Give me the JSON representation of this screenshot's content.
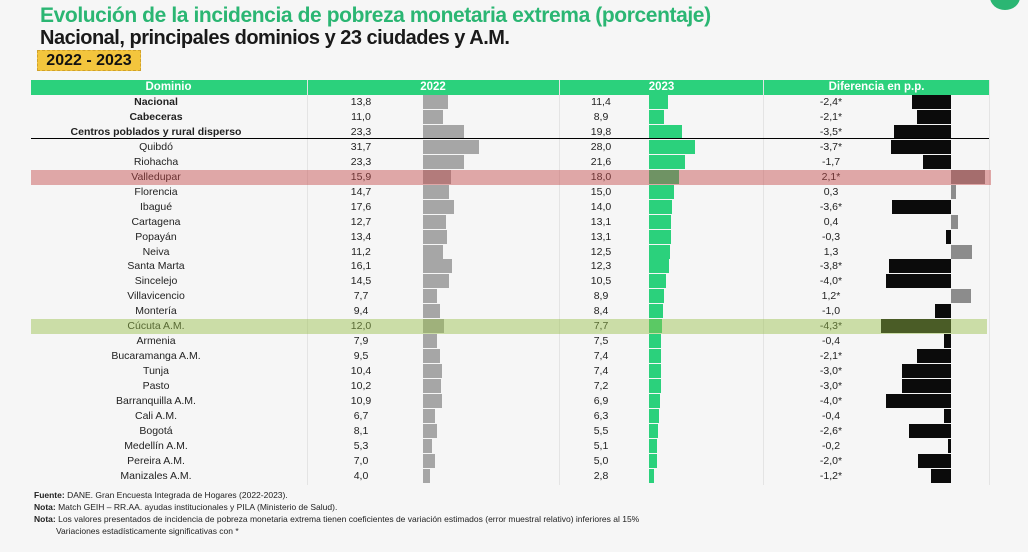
{
  "title": "Evolución de la incidencia de pobreza monetaria extrema (porcentaje)",
  "subtitle": "Nacional, principales dominios y 23 ciudades y A.M.",
  "period": "2022 - 2023",
  "colors": {
    "accent": "#2bd17c",
    "title": "#2bb673",
    "bar_2022": "#a6a6a6",
    "bar_diff_negative": "#0b0b0b",
    "bar_diff_positive": "#8c8c8c",
    "highlight_red": "#c44646",
    "highlight_green": "#96be46"
  },
  "chart_data": {
    "type": "table",
    "columns": [
      "Dominio",
      "2022",
      "2023",
      "Diferencia en p.p."
    ],
    "rows": [
      {
        "name": "Nacional",
        "v2022": "13,8",
        "v2023": "11,4",
        "diff": "-2,4*",
        "bold": true
      },
      {
        "name": "Cabeceras",
        "v2022": "11,0",
        "v2023": "8,9",
        "diff": "-2,1*",
        "bold": true
      },
      {
        "name": "Centros poblados y rural disperso",
        "v2022": "23,3",
        "v2023": "19,8",
        "diff": "-3,5*",
        "bold": true
      },
      {
        "name": "Quibdó",
        "v2022": "31,7",
        "v2023": "28,0",
        "diff": "-3,7*"
      },
      {
        "name": "Riohacha",
        "v2022": "23,3",
        "v2023": "21,6",
        "diff": "-1,7"
      },
      {
        "name": "Valledupar",
        "v2022": "15,9",
        "v2023": "18,0",
        "diff": "2,1*",
        "highlight": "red"
      },
      {
        "name": "Florencia",
        "v2022": "14,7",
        "v2023": "15,0",
        "diff": "0,3"
      },
      {
        "name": "Ibagué",
        "v2022": "17,6",
        "v2023": "14,0",
        "diff": "-3,6*"
      },
      {
        "name": "Cartagena",
        "v2022": "12,7",
        "v2023": "13,1",
        "diff": "0,4"
      },
      {
        "name": "Popayán",
        "v2022": "13,4",
        "v2023": "13,1",
        "diff": "-0,3"
      },
      {
        "name": "Neiva",
        "v2022": "11,2",
        "v2023": "12,5",
        "diff": "1,3"
      },
      {
        "name": "Santa Marta",
        "v2022": "16,1",
        "v2023": "12,3",
        "diff": "-3,8*"
      },
      {
        "name": "Sincelejo",
        "v2022": "14,5",
        "v2023": "10,5",
        "diff": "-4,0*"
      },
      {
        "name": "Villavicencio",
        "v2022": "7,7",
        "v2023": "8,9",
        "diff": "1,2*"
      },
      {
        "name": "Montería",
        "v2022": "9,4",
        "v2023": "8,4",
        "diff": "-1,0"
      },
      {
        "name": "Cúcuta A.M.",
        "v2022": "12,0",
        "v2023": "7,7",
        "diff": "-4,3*",
        "highlight": "green"
      },
      {
        "name": "Armenia",
        "v2022": "7,9",
        "v2023": "7,5",
        "diff": "-0,4"
      },
      {
        "name": "Bucaramanga A.M.",
        "v2022": "9,5",
        "v2023": "7,4",
        "diff": "-2,1*"
      },
      {
        "name": "Tunja",
        "v2022": "10,4",
        "v2023": "7,4",
        "diff": "-3,0*"
      },
      {
        "name": "Pasto",
        "v2022": "10,2",
        "v2023": "7,2",
        "diff": "-3,0*"
      },
      {
        "name": "Barranquilla A.M.",
        "v2022": "10,9",
        "v2023": "6,9",
        "diff": "-4,0*"
      },
      {
        "name": "Cali A.M.",
        "v2022": "6,7",
        "v2023": "6,3",
        "diff": "-0,4"
      },
      {
        "name": "Bogotá",
        "v2022": "8,1",
        "v2023": "5,5",
        "diff": "-2,6*"
      },
      {
        "name": "Medellín A.M.",
        "v2022": "5,3",
        "v2023": "5,1",
        "diff": "-0,2"
      },
      {
        "name": "Pereira A.M.",
        "v2022": "7,0",
        "v2023": "5,0",
        "diff": "-2,0*"
      },
      {
        "name": "Manizales A.M.",
        "v2022": "4,0",
        "v2023": "2,8",
        "diff": "-1,2*"
      }
    ]
  },
  "notes": [
    {
      "label": "Fuente:",
      "text": " DANE. Gran Encuesta Integrada de Hogares (2022-2023)."
    },
    {
      "label": "Nota:",
      "text": " Match GEIH – RR.AA. ayudas institucionales y PILA (Ministerio de Salud)."
    },
    {
      "label": "Nota:",
      "text": " Los valores presentados de incidencia de pobreza monetaria extrema tienen coeficientes de variación estimados (error muestral relativo) inferiores al 15%"
    },
    {
      "label": "",
      "text": "Variaciones estadísticamente significativas con *"
    }
  ]
}
